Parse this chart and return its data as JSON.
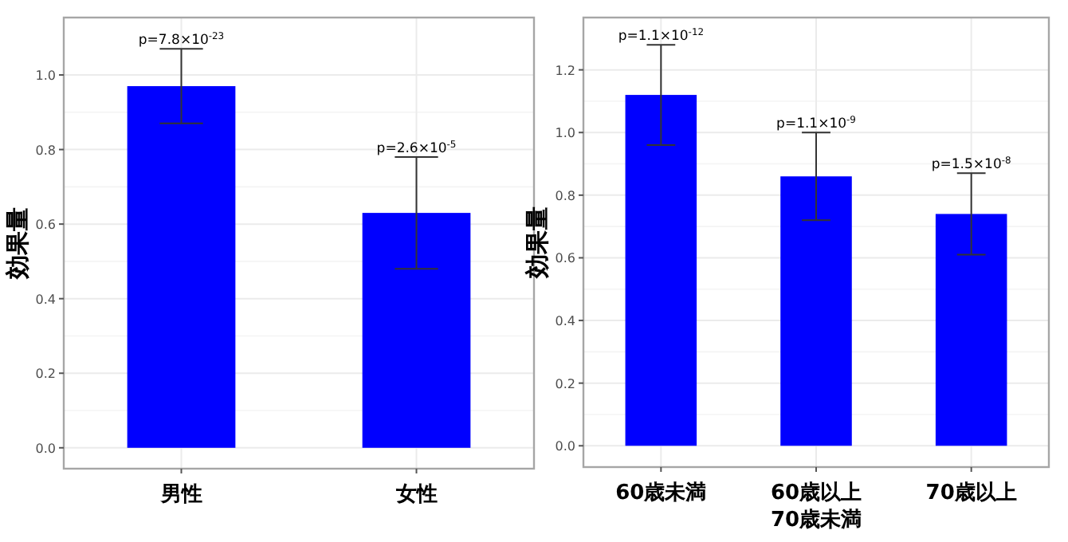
{
  "chart_data": [
    {
      "type": "bar",
      "ylabel": "効果量",
      "categories": [
        "男性",
        "女性"
      ],
      "values": [
        0.97,
        0.63
      ],
      "errors": [
        [
          0.87,
          1.07
        ],
        [
          0.48,
          0.78
        ]
      ],
      "color": "#0000ff",
      "ylim": [
        -0.056,
        1.154
      ],
      "yticks": [
        {
          "value": 0,
          "label": "0.0"
        },
        {
          "value": 0.2,
          "label": "0.2"
        },
        {
          "value": 0.4,
          "label": "0.4"
        },
        {
          "value": 0.6,
          "label": "0.6"
        },
        {
          "value": 0.8,
          "label": "0.8"
        },
        {
          "value": 1,
          "label": "1.0"
        }
      ],
      "grid": true,
      "annotations": [
        {
          "text": "p=7.8×10$^{-23}$",
          "x": "男性",
          "y": 1.07
        },
        {
          "text": "p=2.6×10$^{-5}$",
          "x": "女性",
          "y": 0.78
        }
      ]
    },
    {
      "type": "bar",
      "ylabel": "効果量",
      "categories": [
        "60歳未満",
        "60歳以上\n70歳未満",
        "70歳以上"
      ],
      "values": [
        1.12,
        0.86,
        0.74
      ],
      "errors": [
        [
          0.96,
          1.28
        ],
        [
          0.72,
          1.0
        ],
        [
          0.61,
          0.87
        ]
      ],
      "color": "#0000ff",
      "ylim": [
        -0.068,
        1.367
      ],
      "yticks": [
        {
          "value": 0,
          "label": "0.0"
        },
        {
          "value": 0.2,
          "label": "0.2"
        },
        {
          "value": 0.4,
          "label": "0.4"
        },
        {
          "value": 0.6,
          "label": "0.6"
        },
        {
          "value": 0.8,
          "label": "0.8"
        },
        {
          "value": 1,
          "label": "1.0"
        },
        {
          "value": 1.2,
          "label": "1.2"
        }
      ],
      "grid": true,
      "annotations": [
        {
          "text": "p=1.1×10$^{-12}$",
          "x": "60歳未満",
          "y": 1.28
        },
        {
          "text": "p=1.1×10$^{-9}$",
          "x": "60歳以上\n70歳未満",
          "y": 1.0
        },
        {
          "text": "p=1.5×10$^{-8}$",
          "x": "70歳以上",
          "y": 0.87
        }
      ]
    }
  ]
}
